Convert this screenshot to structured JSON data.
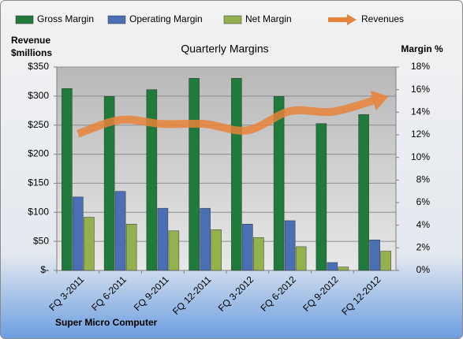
{
  "chart_data": {
    "type": "bar",
    "title": "Quarterly Margins",
    "y_label": [
      "Revenue",
      "$millions"
    ],
    "y2_label": "Margin %",
    "footer": "Super Micro Computer",
    "categories": [
      "FQ 3-2011",
      "FQ 6-2011",
      "FQ 9-2011",
      "FQ 12-2011",
      "FQ 3-2012",
      "FQ 6-2012",
      "FQ 9-2012",
      "FQ 12-2012"
    ],
    "series": [
      {
        "name": "Gross Margin",
        "color": "#1f7a3c",
        "axis": "y2",
        "values": [
          16.1,
          15.4,
          16.0,
          17.0,
          17.0,
          15.4,
          13.0,
          13.8
        ]
      },
      {
        "name": "Operating Margin",
        "color": "#4a6fb5",
        "axis": "y2",
        "values": [
          6.5,
          7.0,
          5.5,
          5.5,
          4.1,
          4.4,
          0.7,
          2.7
        ]
      },
      {
        "name": "Net Margin",
        "color": "#93b24e",
        "axis": "y2",
        "values": [
          4.7,
          4.1,
          3.5,
          3.6,
          2.9,
          2.1,
          0.3,
          1.7
        ]
      },
      {
        "name": "Revenues",
        "color": "#e8833a",
        "type": "line",
        "values": [
          235,
          259,
          252,
          252,
          241,
          274,
          273,
          293
        ]
      }
    ],
    "ylim": [
      0,
      350
    ],
    "yticks": [
      {
        "value": 0,
        "label": "$-"
      },
      {
        "value": 50,
        "label": "$50"
      },
      {
        "value": 100,
        "label": "$100"
      },
      {
        "value": 150,
        "label": "$150"
      },
      {
        "value": 200,
        "label": "$200"
      },
      {
        "value": 250,
        "label": "$250"
      },
      {
        "value": 300,
        "label": "$300"
      },
      {
        "value": 350,
        "label": "$350"
      }
    ],
    "y2lim": [
      0,
      18
    ],
    "y2ticks": [
      {
        "value": 0,
        "label": "0%"
      },
      {
        "value": 2,
        "label": "2%"
      },
      {
        "value": 4,
        "label": "4%"
      },
      {
        "value": 6,
        "label": "6%"
      },
      {
        "value": 8,
        "label": "8%"
      },
      {
        "value": 10,
        "label": "10%"
      },
      {
        "value": 12,
        "label": "12%"
      },
      {
        "value": 14,
        "label": "14%"
      },
      {
        "value": 16,
        "label": "16%"
      },
      {
        "value": 18,
        "label": "18%"
      }
    ],
    "grid": true,
    "legend": "top"
  }
}
